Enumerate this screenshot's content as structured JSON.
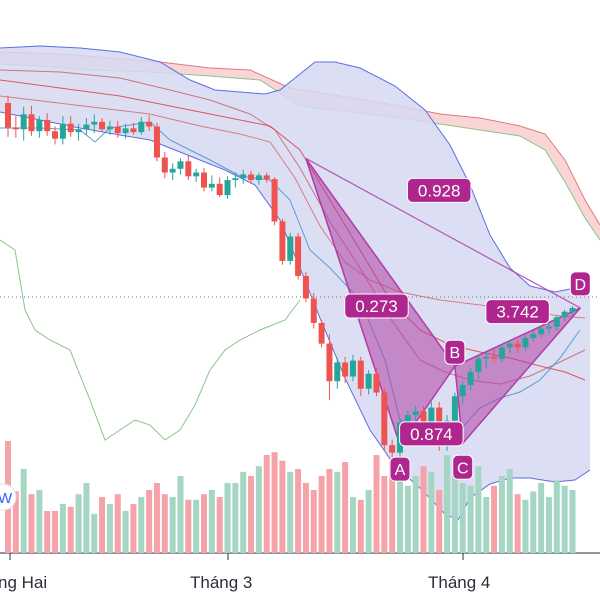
{
  "chart_data": {
    "type": "candlestick",
    "x_axis": {
      "tick_labels": [
        "ng Hai",
        "Tháng 3",
        "Tháng 4"
      ]
    },
    "colors": {
      "up": "#26a69a",
      "down": "#ef5350",
      "volume_up": "#a5d6c4",
      "volume_down": "#f5a3a8",
      "bollinger_fill": "#d6d9f2",
      "bollinger_line": "#5b6ee1",
      "cloud_fill": "#f9d0d0",
      "pattern_fill": "#b03fa6",
      "pattern_label_bg": "#b0268f",
      "ma_red": "#d85a5a",
      "ma_blue": "#5a9bd8",
      "oscillator_green": "#8bc48b"
    },
    "candles": [
      [
        100.0,
        100.8,
        96.4,
        97.4
      ],
      [
        97.4,
        98.6,
        96.3,
        97.2
      ],
      [
        97.2,
        99.6,
        96.0,
        98.8
      ],
      [
        98.8,
        99.7,
        96.5,
        97.0
      ],
      [
        97.0,
        98.6,
        96.3,
        98.2
      ],
      [
        98.2,
        98.9,
        96.5,
        97.0
      ],
      [
        97.0,
        97.5,
        95.6,
        96.2
      ],
      [
        96.2,
        98.6,
        95.6,
        97.8
      ],
      [
        97.8,
        98.6,
        96.4,
        96.9
      ],
      [
        96.9,
        97.8,
        96.0,
        97.2
      ],
      [
        97.2,
        98.4,
        96.6,
        97.7
      ],
      [
        97.7,
        98.8,
        96.8,
        98.0
      ],
      [
        98.0,
        98.4,
        97.0,
        97.2
      ],
      [
        97.2,
        98.1,
        96.6,
        97.5
      ],
      [
        97.5,
        98.1,
        96.3,
        96.8
      ],
      [
        96.8,
        97.8,
        96.2,
        97.3
      ],
      [
        97.3,
        97.9,
        96.6,
        96.9
      ],
      [
        96.9,
        98.5,
        96.6,
        98.0
      ],
      [
        98.0,
        98.7,
        97.0,
        97.5
      ],
      [
        97.5,
        97.9,
        93.8,
        94.2
      ],
      [
        94.2,
        94.8,
        92.0,
        92.6
      ],
      [
        92.6,
        93.6,
        91.8,
        93.0
      ],
      [
        93.0,
        94.1,
        92.4,
        93.8
      ],
      [
        93.8,
        94.4,
        91.8,
        92.2
      ],
      [
        92.2,
        93.0,
        91.6,
        92.6
      ],
      [
        92.6,
        93.1,
        90.6,
        91.0
      ],
      [
        91.0,
        92.3,
        90.6,
        91.4
      ],
      [
        91.4,
        92.1,
        90.0,
        90.2
      ],
      [
        90.2,
        92.2,
        89.8,
        91.8
      ],
      [
        91.8,
        92.6,
        91.0,
        92.0
      ],
      [
        92.0,
        92.9,
        91.4,
        92.4
      ],
      [
        92.4,
        92.8,
        91.4,
        91.8
      ],
      [
        91.8,
        92.6,
        91.3,
        92.3
      ],
      [
        92.3,
        92.6,
        91.5,
        91.9
      ],
      [
        91.9,
        92.1,
        87.0,
        87.4
      ],
      [
        87.4,
        87.7,
        82.8,
        83.2
      ],
      [
        83.2,
        86.2,
        82.8,
        85.8
      ],
      [
        85.8,
        86.2,
        81.2,
        81.6
      ],
      [
        81.6,
        82.0,
        78.8,
        79.2
      ],
      [
        79.2,
        79.8,
        76.0,
        76.6
      ],
      [
        76.6,
        76.9,
        74.0,
        74.4
      ],
      [
        74.4,
        75.4,
        68.4,
        70.4
      ],
      [
        70.4,
        72.9,
        69.6,
        72.4
      ],
      [
        72.4,
        73.0,
        70.2,
        70.9
      ],
      [
        70.9,
        73.2,
        70.4,
        72.6
      ],
      [
        72.6,
        73.0,
        68.8,
        69.6
      ],
      [
        69.6,
        71.6,
        69.0,
        71.2
      ],
      [
        71.2,
        71.8,
        68.8,
        69.2
      ],
      [
        69.2,
        69.6,
        63.0,
        63.6
      ],
      [
        63.6,
        64.2,
        62.0,
        62.8
      ],
      [
        62.8,
        66.4,
        62.0,
        66.0
      ],
      [
        66.0,
        67.3,
        65.5,
        66.8
      ],
      [
        66.8,
        67.8,
        65.9,
        67.2
      ],
      [
        67.2,
        67.8,
        65.4,
        65.8
      ],
      [
        65.8,
        68.2,
        65.0,
        67.6
      ],
      [
        67.6,
        68.2,
        63.0,
        63.8
      ],
      [
        63.8,
        66.8,
        63.0,
        66.2
      ],
      [
        66.2,
        69.2,
        65.6,
        68.8
      ],
      [
        68.8,
        70.4,
        68.0,
        70.0
      ],
      [
        70.0,
        71.8,
        69.4,
        71.4
      ],
      [
        71.4,
        73.2,
        70.6,
        72.8
      ],
      [
        72.8,
        73.6,
        71.8,
        73.0
      ],
      [
        73.0,
        73.8,
        72.4,
        72.8
      ],
      [
        72.8,
        74.3,
        72.4,
        74.0
      ],
      [
        74.0,
        74.8,
        73.4,
        74.4
      ],
      [
        74.4,
        74.8,
        73.4,
        74.0
      ],
      [
        74.0,
        75.3,
        73.6,
        75.0
      ],
      [
        75.0,
        75.8,
        74.6,
        75.4
      ],
      [
        75.4,
        76.3,
        75.1,
        76.0
      ],
      [
        76.0,
        76.6,
        75.4,
        76.2
      ],
      [
        76.2,
        77.4,
        75.8,
        77.2
      ],
      [
        77.2,
        78.0,
        76.8,
        77.8
      ],
      [
        77.8,
        78.4,
        77.4,
        78.2
      ]
    ],
    "volume": [
      0.8,
      0.44,
      0.6,
      0.42,
      0.45,
      0.3,
      0.3,
      0.35,
      0.33,
      0.42,
      0.5,
      0.28,
      0.4,
      0.35,
      0.42,
      0.3,
      0.35,
      0.4,
      0.45,
      0.5,
      0.42,
      0.4,
      0.55,
      0.38,
      0.38,
      0.42,
      0.45,
      0.4,
      0.5,
      0.5,
      0.58,
      0.55,
      0.62,
      0.7,
      0.72,
      0.66,
      0.58,
      0.6,
      0.5,
      0.45,
      0.55,
      0.6,
      0.58,
      0.65,
      0.4,
      0.38,
      0.45,
      0.7,
      0.55,
      0.65,
      0.6,
      0.48,
      0.55,
      0.62,
      0.58,
      0.45,
      0.7,
      0.55,
      0.5,
      0.48,
      0.62,
      0.4,
      0.48,
      0.55,
      0.6,
      0.42,
      0.38,
      0.44,
      0.5,
      0.4,
      0.52,
      0.48,
      0.45
    ],
    "harmonic_pattern": {
      "points": [
        {
          "name": "X",
          "label": "",
          "x": 38,
          "y": 94.1
        },
        {
          "name": "A",
          "label": "A",
          "x": 50,
          "y": 63.6
        },
        {
          "name": "B",
          "label": "B",
          "x": 57,
          "y": 72.0
        },
        {
          "name": "C",
          "label": "C",
          "x": 58,
          "y": 63.8
        },
        {
          "name": "D",
          "label": "D",
          "x": 73,
          "y": 78.2
        }
      ],
      "ratios": [
        {
          "label": "0.273",
          "x": 47,
          "y": 78.4
        },
        {
          "label": "0.874",
          "x": 54,
          "y": 64.8
        },
        {
          "label": "3.742",
          "x": 65,
          "y": 77.8
        },
        {
          "label": "0.928",
          "x": 55,
          "y": 90.7
        }
      ]
    },
    "side_badge": "W"
  }
}
